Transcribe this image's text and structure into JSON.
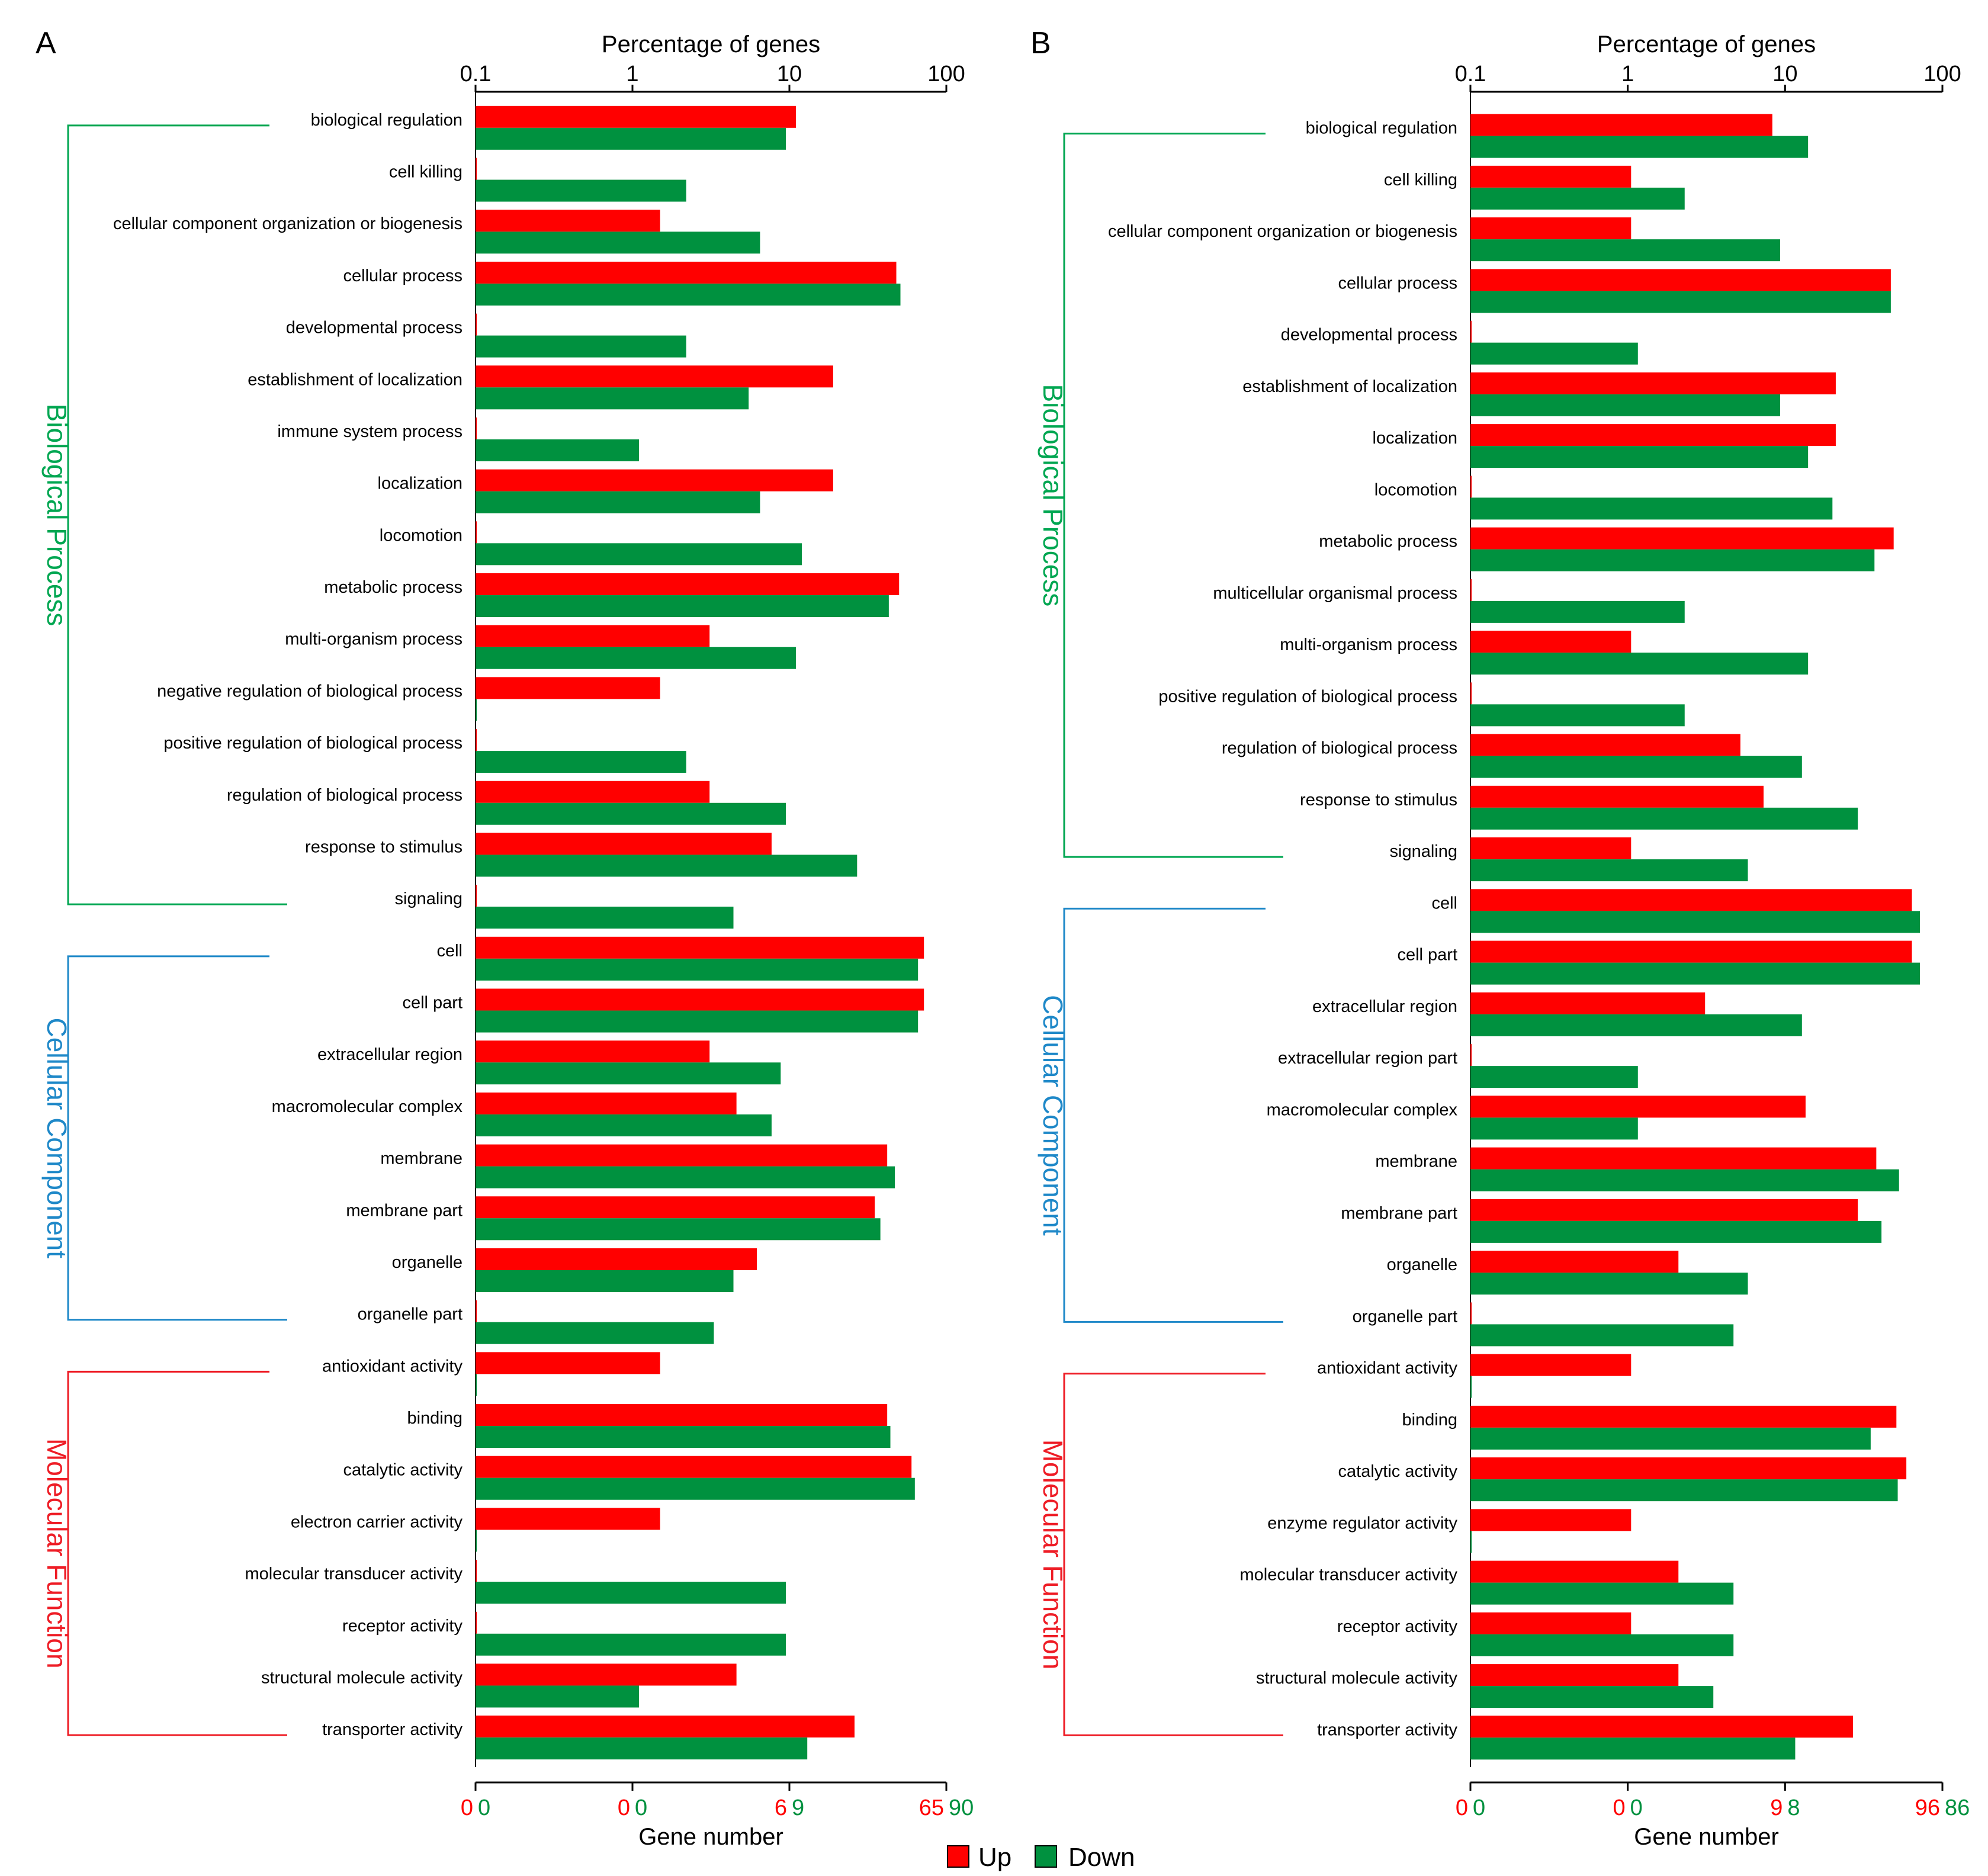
{
  "colors": {
    "up": "#FF0000",
    "down": "#00913F",
    "bp": "#00A651",
    "cc": "#1E88C8",
    "mf": "#EE1C25"
  },
  "legend": {
    "up_label": "Up",
    "down_label": "Down"
  },
  "chart_data": [
    {
      "panel": "A",
      "type": "bar",
      "orientation": "horizontal",
      "scale": "log",
      "title": "Percentage of genes",
      "xlabel": "Gene number",
      "xlim": [
        0.1,
        100
      ],
      "x_ticks": [
        "0.1",
        "1",
        "10",
        "100"
      ],
      "bottom_up_ticks": [
        "0",
        "0",
        "6",
        "65"
      ],
      "bottom_down_ticks": [
        "0",
        "0",
        "9",
        "90"
      ],
      "groups": [
        {
          "name": "Biological Process",
          "color_key": "bp",
          "categories": [
            {
              "label": "biological regulation",
              "up": 11,
              "down": 9.5
            },
            {
              "label": "cell killing",
              "up": null,
              "down": 2.2
            },
            {
              "label": "cellular component organization or biogenesis",
              "up": 1.5,
              "down": 6.5
            },
            {
              "label": "cellular process",
              "up": 48,
              "down": 51
            },
            {
              "label": "developmental process",
              "up": null,
              "down": 2.2
            },
            {
              "label": "establishment of localization",
              "up": 19,
              "down": 5.5
            },
            {
              "label": "immune system process",
              "up": null,
              "down": 1.1
            },
            {
              "label": "localization",
              "up": 19,
              "down": 6.5
            },
            {
              "label": "locomotion",
              "up": null,
              "down": 12
            },
            {
              "label": "metabolic process",
              "up": 50,
              "down": 43
            },
            {
              "label": "multi-organism process",
              "up": 3.1,
              "down": 11
            },
            {
              "label": "negative regulation of biological process",
              "up": 1.5,
              "down": null
            },
            {
              "label": "positive regulation of biological process",
              "up": null,
              "down": 2.2
            },
            {
              "label": "regulation of biological process",
              "up": 3.1,
              "down": 9.5
            },
            {
              "label": "response to stimulus",
              "up": 7.7,
              "down": 27
            },
            {
              "label": "signaling",
              "up": null,
              "down": 4.4
            }
          ]
        },
        {
          "name": "Cellular Component",
          "color_key": "cc",
          "categories": [
            {
              "label": "cell",
              "up": 72,
              "down": 66
            },
            {
              "label": "cell part",
              "up": 72,
              "down": 66
            },
            {
              "label": "extracellular region",
              "up": 3.1,
              "down": 8.8
            },
            {
              "label": "macromolecular complex",
              "up": 4.6,
              "down": 7.7
            },
            {
              "label": "membrane",
              "up": 42,
              "down": 47
            },
            {
              "label": "membrane part",
              "up": 35,
              "down": 38
            },
            {
              "label": "organelle",
              "up": 6.2,
              "down": 4.4
            },
            {
              "label": "organelle part",
              "up": null,
              "down": 3.3
            }
          ]
        },
        {
          "name": "Molecular Function",
          "color_key": "mf",
          "categories": [
            {
              "label": "antioxidant activity",
              "up": 1.5,
              "down": null
            },
            {
              "label": "binding",
              "up": 42,
              "down": 44
            },
            {
              "label": "catalytic activity",
              "up": 60,
              "down": 63
            },
            {
              "label": "electron carrier activity",
              "up": 1.5,
              "down": null
            },
            {
              "label": "molecular transducer activity",
              "up": null,
              "down": 9.5
            },
            {
              "label": "receptor activity",
              "up": null,
              "down": 9.5
            },
            {
              "label": "structural molecule activity",
              "up": 4.6,
              "down": 1.1
            },
            {
              "label": "transporter activity",
              "up": 26,
              "down": 13
            }
          ]
        }
      ]
    },
    {
      "panel": "B",
      "type": "bar",
      "orientation": "horizontal",
      "scale": "log",
      "title": "Percentage of genes",
      "xlabel": "Gene number",
      "xlim": [
        0.1,
        100
      ],
      "x_ticks": [
        "0.1",
        "1",
        "10",
        "100"
      ],
      "bottom_up_ticks": [
        "0",
        "0",
        "9",
        "96"
      ],
      "bottom_down_ticks": [
        "0",
        "0",
        "8",
        "86"
      ],
      "groups": [
        {
          "name": "Biological Process",
          "color_key": "bp",
          "categories": [
            {
              "label": "biological regulation",
              "up": 8.3,
              "down": 14
            },
            {
              "label": "cell killing",
              "up": 1.05,
              "down": 2.3
            },
            {
              "label": "cellular component organization or biogenesis",
              "up": 1.05,
              "down": 9.3
            },
            {
              "label": "cellular process",
              "up": 47,
              "down": 47
            },
            {
              "label": "developmental process",
              "up": null,
              "down": 1.16
            },
            {
              "label": "establishment of localization",
              "up": 21,
              "down": 9.3
            },
            {
              "label": "localization",
              "up": 21,
              "down": 14
            },
            {
              "label": "locomotion",
              "up": null,
              "down": 20
            },
            {
              "label": "metabolic process",
              "up": 49,
              "down": 37
            },
            {
              "label": "multicellular organismal process",
              "up": null,
              "down": 2.3
            },
            {
              "label": "multi-organism process",
              "up": 1.05,
              "down": 14
            },
            {
              "label": "positive regulation of biological process",
              "up": null,
              "down": 2.3
            },
            {
              "label": "regulation of biological process",
              "up": 5.2,
              "down": 12.8
            },
            {
              "label": "response to stimulus",
              "up": 7.3,
              "down": 29
            },
            {
              "label": "signaling",
              "up": 1.05,
              "down": 5.8
            }
          ]
        },
        {
          "name": "Cellular Component",
          "color_key": "cc",
          "categories": [
            {
              "label": "cell",
              "up": 64,
              "down": 72
            },
            {
              "label": "cell part",
              "up": 64,
              "down": 72
            },
            {
              "label": "extracellular region",
              "up": 3.1,
              "down": 12.8
            },
            {
              "label": "extracellular region part",
              "up": null,
              "down": 1.16
            },
            {
              "label": "macromolecular complex",
              "up": 13.5,
              "down": 1.16
            },
            {
              "label": "membrane",
              "up": 38,
              "down": 53
            },
            {
              "label": "membrane part",
              "up": 29,
              "down": 41
            },
            {
              "label": "organelle",
              "up": 2.1,
              "down": 5.8
            },
            {
              "label": "organelle part",
              "up": null,
              "down": 4.7
            }
          ]
        },
        {
          "name": "Molecular Function",
          "color_key": "mf",
          "categories": [
            {
              "label": "antioxidant activity",
              "up": 1.05,
              "down": null
            },
            {
              "label": "binding",
              "up": 51,
              "down": 35
            },
            {
              "label": "catalytic activity",
              "up": 59,
              "down": 52
            },
            {
              "label": "enzyme regulator activity",
              "up": 1.05,
              "down": null
            },
            {
              "label": "molecular transducer activity",
              "up": 2.1,
              "down": 4.7
            },
            {
              "label": "receptor activity",
              "up": 1.05,
              "down": 4.7
            },
            {
              "label": "structural molecule activity",
              "up": 2.1,
              "down": 3.5
            },
            {
              "label": "transporter activity",
              "up": 27,
              "down": 11.6
            }
          ]
        }
      ]
    }
  ]
}
